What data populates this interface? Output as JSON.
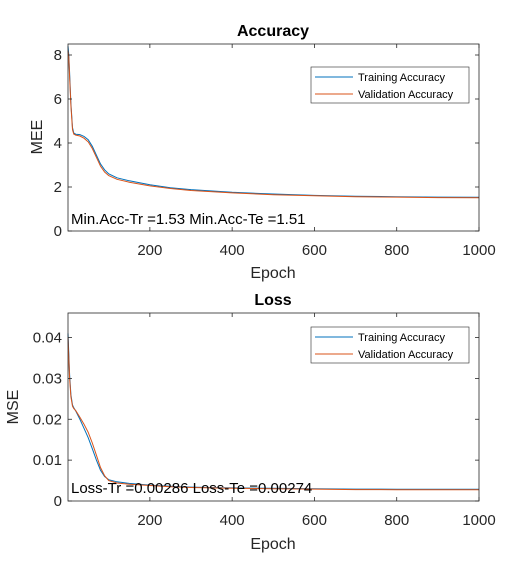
{
  "chart_data": [
    {
      "type": "line",
      "title": "Accuracy",
      "xlabel": "Epoch",
      "ylabel": "MEE",
      "xlim": [
        1,
        1000
      ],
      "ylim": [
        0,
        8.5
      ],
      "xticks": [
        200,
        400,
        600,
        800,
        1000
      ],
      "yticks": [
        0,
        2,
        4,
        6,
        8
      ],
      "xtick_labels": [
        "200",
        "400",
        "600",
        "800",
        "1000"
      ],
      "ytick_labels": [
        "0",
        "2",
        "4",
        "6",
        "8"
      ],
      "grid": false,
      "legend_position": "top-right",
      "annotation": "Min.Acc-Tr =1.53 Min.Acc-Te =1.51",
      "series": [
        {
          "name": "Training Accuracy",
          "color": "#0072BD",
          "x": [
            1,
            3,
            5,
            8,
            12,
            15,
            20,
            30,
            40,
            50,
            60,
            70,
            80,
            90,
            100,
            120,
            150,
            200,
            250,
            300,
            400,
            500,
            600,
            700,
            800,
            900,
            1000
          ],
          "y": [
            8.4,
            8.0,
            7.2,
            5.8,
            4.7,
            4.45,
            4.4,
            4.38,
            4.3,
            4.15,
            3.85,
            3.45,
            3.05,
            2.78,
            2.6,
            2.42,
            2.28,
            2.1,
            1.97,
            1.88,
            1.76,
            1.68,
            1.62,
            1.58,
            1.56,
            1.54,
            1.53
          ]
        },
        {
          "name": "Validation  Accuracy",
          "color": "#D95319",
          "x": [
            1,
            3,
            5,
            8,
            12,
            15,
            20,
            30,
            40,
            50,
            60,
            70,
            80,
            90,
            100,
            120,
            150,
            200,
            250,
            300,
            400,
            500,
            600,
            700,
            800,
            900,
            1000
          ],
          "y": [
            8.2,
            7.9,
            7.0,
            5.7,
            4.6,
            4.4,
            4.36,
            4.32,
            4.22,
            4.05,
            3.75,
            3.35,
            2.95,
            2.68,
            2.52,
            2.35,
            2.22,
            2.05,
            1.93,
            1.84,
            1.73,
            1.65,
            1.6,
            1.56,
            1.54,
            1.52,
            1.51
          ]
        }
      ]
    },
    {
      "type": "line",
      "title": "Loss",
      "xlabel": "Epoch",
      "ylabel": "MSE",
      "xlim": [
        1,
        1000
      ],
      "ylim": [
        0,
        0.046
      ],
      "xticks": [
        200,
        400,
        600,
        800,
        1000
      ],
      "yticks": [
        0,
        0.01,
        0.02,
        0.03,
        0.04
      ],
      "xtick_labels": [
        "200",
        "400",
        "600",
        "800",
        "1000"
      ],
      "ytick_labels": [
        "0",
        "0.01",
        "0.02",
        "0.03",
        "0.04"
      ],
      "grid": false,
      "legend_position": "top-right",
      "annotation": "Loss-Tr =0.00286 Loss-Te =0.00274",
      "series": [
        {
          "name": "Training Accuracy",
          "color": "#0072BD",
          "x": [
            1,
            3,
            5,
            8,
            12,
            15,
            20,
            30,
            40,
            50,
            60,
            70,
            80,
            90,
            100,
            120,
            150,
            200,
            250,
            300,
            400,
            500,
            600,
            700,
            800,
            900,
            1000
          ],
          "y": [
            0.041,
            0.036,
            0.031,
            0.026,
            0.0235,
            0.0228,
            0.022,
            0.02,
            0.0178,
            0.0155,
            0.0128,
            0.01,
            0.0075,
            0.006,
            0.0052,
            0.0047,
            0.0043,
            0.0039,
            0.0036,
            0.0034,
            0.0032,
            0.0031,
            0.003,
            0.0029,
            0.00288,
            0.00287,
            0.00286
          ]
        },
        {
          "name": "Validation  Accuracy",
          "color": "#D95319",
          "x": [
            1,
            3,
            5,
            8,
            12,
            15,
            20,
            30,
            40,
            50,
            60,
            70,
            80,
            90,
            100,
            120,
            150,
            200,
            250,
            300,
            400,
            500,
            600,
            700,
            800,
            900,
            1000
          ],
          "y": [
            0.04,
            0.035,
            0.03,
            0.0255,
            0.0232,
            0.0226,
            0.0221,
            0.0205,
            0.0188,
            0.0168,
            0.0142,
            0.0112,
            0.0082,
            0.0062,
            0.005,
            0.0044,
            0.0041,
            0.0038,
            0.0035,
            0.0033,
            0.0031,
            0.003,
            0.0029,
            0.0028,
            0.00277,
            0.00275,
            0.00274
          ]
        }
      ]
    }
  ]
}
